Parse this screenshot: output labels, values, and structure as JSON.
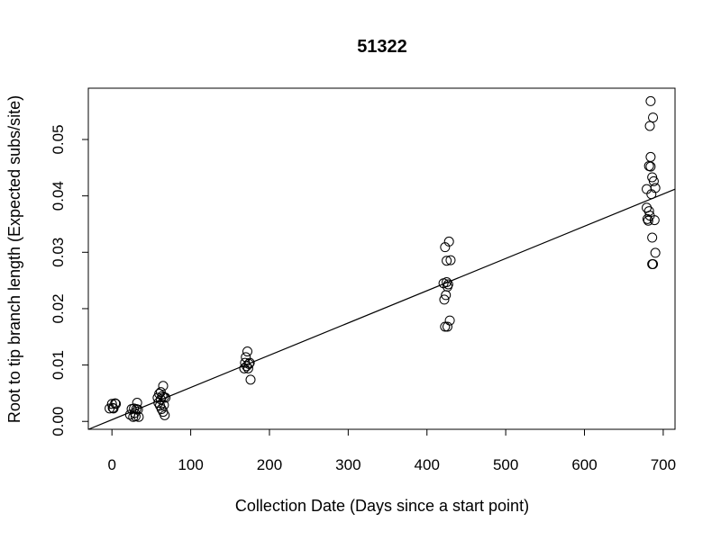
{
  "chart_data": {
    "type": "scatter",
    "title": "51322",
    "xlabel": "Collection Date (Days since a start point)",
    "ylabel": "Root to tip branch length (Expected subs/site)",
    "xlim": [
      -30,
      715
    ],
    "ylim": [
      -0.0014,
      0.0591
    ],
    "x_ticks": [
      0,
      100,
      200,
      300,
      400,
      500,
      600,
      700
    ],
    "y_ticks": [
      0.0,
      0.01,
      0.02,
      0.03,
      0.04,
      0.05
    ],
    "x_tick_labels": [
      "0",
      "100",
      "200",
      "300",
      "400",
      "500",
      "600",
      "700"
    ],
    "y_tick_labels": [
      "0.00",
      "0.01",
      "0.02",
      "0.03",
      "0.04",
      "0.05"
    ],
    "grid": false,
    "legend": "none",
    "regression_line": {
      "intercept": 0.0003,
      "slope": 5.72e-05
    },
    "points": [
      {
        "x": -3,
        "y": 0.0023
      },
      {
        "x": 0,
        "y": 0.0031
      },
      {
        "x": 1,
        "y": 0.0024
      },
      {
        "x": 2,
        "y": 0.0023
      },
      {
        "x": 4,
        "y": 0.0032
      },
      {
        "x": 5,
        "y": 0.0031
      },
      {
        "x": 23,
        "y": 0.0012
      },
      {
        "x": 25,
        "y": 0.0022
      },
      {
        "x": 27,
        "y": 0.0008
      },
      {
        "x": 28,
        "y": 0.0023
      },
      {
        "x": 29,
        "y": 0.0015
      },
      {
        "x": 30,
        "y": 0.0009
      },
      {
        "x": 31,
        "y": 0.0022
      },
      {
        "x": 32,
        "y": 0.0033
      },
      {
        "x": 33,
        "y": 0.0021
      },
      {
        "x": 34,
        "y": 0.0008
      },
      {
        "x": 58,
        "y": 0.0042
      },
      {
        "x": 59,
        "y": 0.0033
      },
      {
        "x": 60,
        "y": 0.0049
      },
      {
        "x": 61,
        "y": 0.0028
      },
      {
        "x": 62,
        "y": 0.0052
      },
      {
        "x": 62,
        "y": 0.0039
      },
      {
        "x": 63,
        "y": 0.0022
      },
      {
        "x": 64,
        "y": 0.0045
      },
      {
        "x": 65,
        "y": 0.0063
      },
      {
        "x": 65,
        "y": 0.0017
      },
      {
        "x": 66,
        "y": 0.0029
      },
      {
        "x": 66,
        "y": 0.0043
      },
      {
        "x": 67,
        "y": 0.0011
      },
      {
        "x": 68,
        "y": 0.0042
      },
      {
        "x": 168,
        "y": 0.0094
      },
      {
        "x": 169,
        "y": 0.0104
      },
      {
        "x": 170,
        "y": 0.0114
      },
      {
        "x": 171,
        "y": 0.0098
      },
      {
        "x": 172,
        "y": 0.0124
      },
      {
        "x": 173,
        "y": 0.0094
      },
      {
        "x": 174,
        "y": 0.0102
      },
      {
        "x": 175,
        "y": 0.0104
      },
      {
        "x": 176,
        "y": 0.0074
      },
      {
        "x": 421,
        "y": 0.0245
      },
      {
        "x": 422,
        "y": 0.0216
      },
      {
        "x": 423,
        "y": 0.0309
      },
      {
        "x": 423,
        "y": 0.0168
      },
      {
        "x": 424,
        "y": 0.0224
      },
      {
        "x": 425,
        "y": 0.0285
      },
      {
        "x": 425,
        "y": 0.0247
      },
      {
        "x": 426,
        "y": 0.0239
      },
      {
        "x": 426,
        "y": 0.0168
      },
      {
        "x": 427,
        "y": 0.0243
      },
      {
        "x": 428,
        "y": 0.0319
      },
      {
        "x": 429,
        "y": 0.0179
      },
      {
        "x": 430,
        "y": 0.0286
      },
      {
        "x": 679,
        "y": 0.0412
      },
      {
        "x": 679,
        "y": 0.0379
      },
      {
        "x": 680,
        "y": 0.0359
      },
      {
        "x": 681,
        "y": 0.0356
      },
      {
        "x": 682,
        "y": 0.0373
      },
      {
        "x": 682,
        "y": 0.0453
      },
      {
        "x": 683,
        "y": 0.0365
      },
      {
        "x": 683,
        "y": 0.0524
      },
      {
        "x": 684,
        "y": 0.0568
      },
      {
        "x": 684,
        "y": 0.0469
      },
      {
        "x": 684,
        "y": 0.0452
      },
      {
        "x": 685,
        "y": 0.0403
      },
      {
        "x": 686,
        "y": 0.0433
      },
      {
        "x": 686,
        "y": 0.0279
      },
      {
        "x": 686,
        "y": 0.0326
      },
      {
        "x": 687,
        "y": 0.0539
      },
      {
        "x": 687,
        "y": 0.0279
      },
      {
        "x": 688,
        "y": 0.0426
      },
      {
        "x": 689,
        "y": 0.0357
      },
      {
        "x": 690,
        "y": 0.0299
      },
      {
        "x": 690,
        "y": 0.0414
      }
    ]
  }
}
